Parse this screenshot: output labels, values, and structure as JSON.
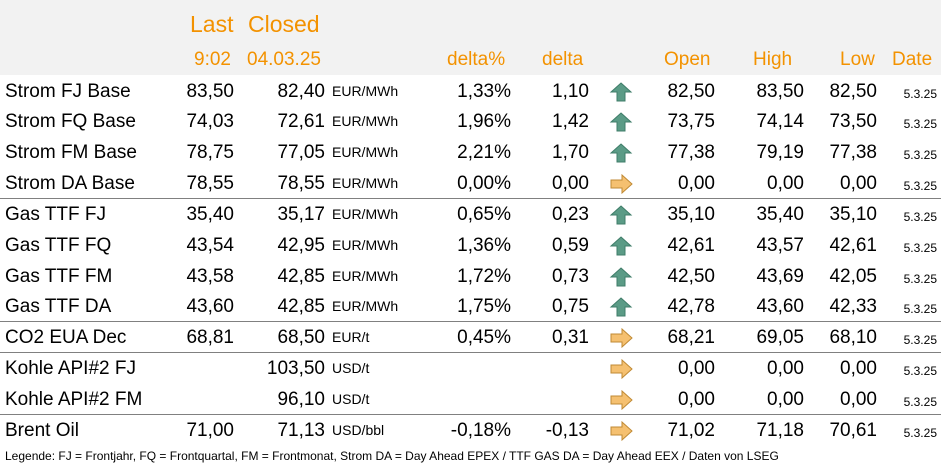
{
  "header": {
    "last_label": "Last",
    "closed_label": "Closed",
    "last_time": "9:02",
    "closed_date": "04.03.25",
    "col_delta_pct": "delta%",
    "col_delta": "delta",
    "col_open": "Open",
    "col_high": "High",
    "col_low": "Low",
    "col_date": "Date"
  },
  "colors": {
    "header_accent": "#f39200",
    "arrow_up": "#5b9b86",
    "arrow_flat": "#f5c070"
  },
  "rows": [
    {
      "name": "Strom FJ Base",
      "last": "83,50",
      "closed": "82,40",
      "unit": "EUR/MWh",
      "delta_pct": "1,33%",
      "delta": "1,10",
      "trend": "arrow-up-icon",
      "open": "82,50",
      "high": "83,50",
      "low": "82,50",
      "date": "5.3.25"
    },
    {
      "name": "Strom FQ Base",
      "last": "74,03",
      "closed": "72,61",
      "unit": "EUR/MWh",
      "delta_pct": "1,96%",
      "delta": "1,42",
      "trend": "arrow-up-icon",
      "open": "73,75",
      "high": "74,14",
      "low": "73,50",
      "date": "5.3.25"
    },
    {
      "name": "Strom FM Base",
      "last": "78,75",
      "closed": "77,05",
      "unit": "EUR/MWh",
      "delta_pct": "2,21%",
      "delta": "1,70",
      "trend": "arrow-up-icon",
      "open": "77,38",
      "high": "79,19",
      "low": "77,38",
      "date": "5.3.25"
    },
    {
      "name": "Strom DA Base",
      "last": "78,55",
      "closed": "78,55",
      "unit": "EUR/MWh",
      "delta_pct": "0,00%",
      "delta": "0,00",
      "trend": "arrow-right-icon",
      "open": "0,00",
      "high": "0,00",
      "low": "0,00",
      "date": "5.3.25"
    },
    {
      "name": "Gas TTF FJ",
      "last": "35,40",
      "closed": "35,17",
      "unit": "EUR/MWh",
      "delta_pct": "0,65%",
      "delta": "0,23",
      "trend": "arrow-up-icon",
      "open": "35,10",
      "high": "35,40",
      "low": "35,10",
      "date": "5.3.25"
    },
    {
      "name": "Gas TTF FQ",
      "last": "43,54",
      "closed": "42,95",
      "unit": "EUR/MWh",
      "delta_pct": "1,36%",
      "delta": "0,59",
      "trend": "arrow-up-icon",
      "open": "42,61",
      "high": "43,57",
      "low": "42,61",
      "date": "5.3.25"
    },
    {
      "name": "Gas TTF FM",
      "last": "43,58",
      "closed": "42,85",
      "unit": "EUR/MWh",
      "delta_pct": "1,72%",
      "delta": "0,73",
      "trend": "arrow-up-icon",
      "open": "42,50",
      "high": "43,69",
      "low": "42,05",
      "date": "5.3.25"
    },
    {
      "name": "Gas TTF DA",
      "last": "43,60",
      "closed": "42,85",
      "unit": "EUR/MWh",
      "delta_pct": "1,75%",
      "delta": "0,75",
      "trend": "arrow-up-icon",
      "open": "42,78",
      "high": "43,60",
      "low": "42,33",
      "date": "5.3.25"
    },
    {
      "name": "CO2 EUA Dec",
      "last": "68,81",
      "closed": "68,50",
      "unit": "EUR/t",
      "delta_pct": "0,45%",
      "delta": "0,31",
      "trend": "arrow-right-icon",
      "open": "68,21",
      "high": "69,05",
      "low": "68,10",
      "date": "5.3.25"
    },
    {
      "name": "Kohle API#2 FJ",
      "last": "",
      "closed": "103,50",
      "unit": "USD/t",
      "delta_pct": "",
      "delta": "",
      "trend": "arrow-right-icon",
      "open": "0,00",
      "high": "0,00",
      "low": "0,00",
      "date": "5.3.25"
    },
    {
      "name": "Kohle API#2 FM",
      "last": "",
      "closed": "96,10",
      "unit": "USD/t",
      "delta_pct": "",
      "delta": "",
      "trend": "arrow-right-icon",
      "open": "0,00",
      "high": "0,00",
      "low": "0,00",
      "date": "5.3.25"
    },
    {
      "name": "Brent Oil",
      "last": "71,00",
      "closed": "71,13",
      "unit": "USD/bbl",
      "delta_pct": "-0,18%",
      "delta": "-0,13",
      "trend": "arrow-right-icon",
      "open": "71,02",
      "high": "71,18",
      "low": "70,61",
      "date": "5.3.25"
    }
  ],
  "legend": "Legende: FJ = Frontjahr, FQ = Frontquartal, FM = Frontmonat, Strom DA = Day Ahead EPEX / TTF GAS DA = Day Ahead EEX / Daten von LSEG"
}
